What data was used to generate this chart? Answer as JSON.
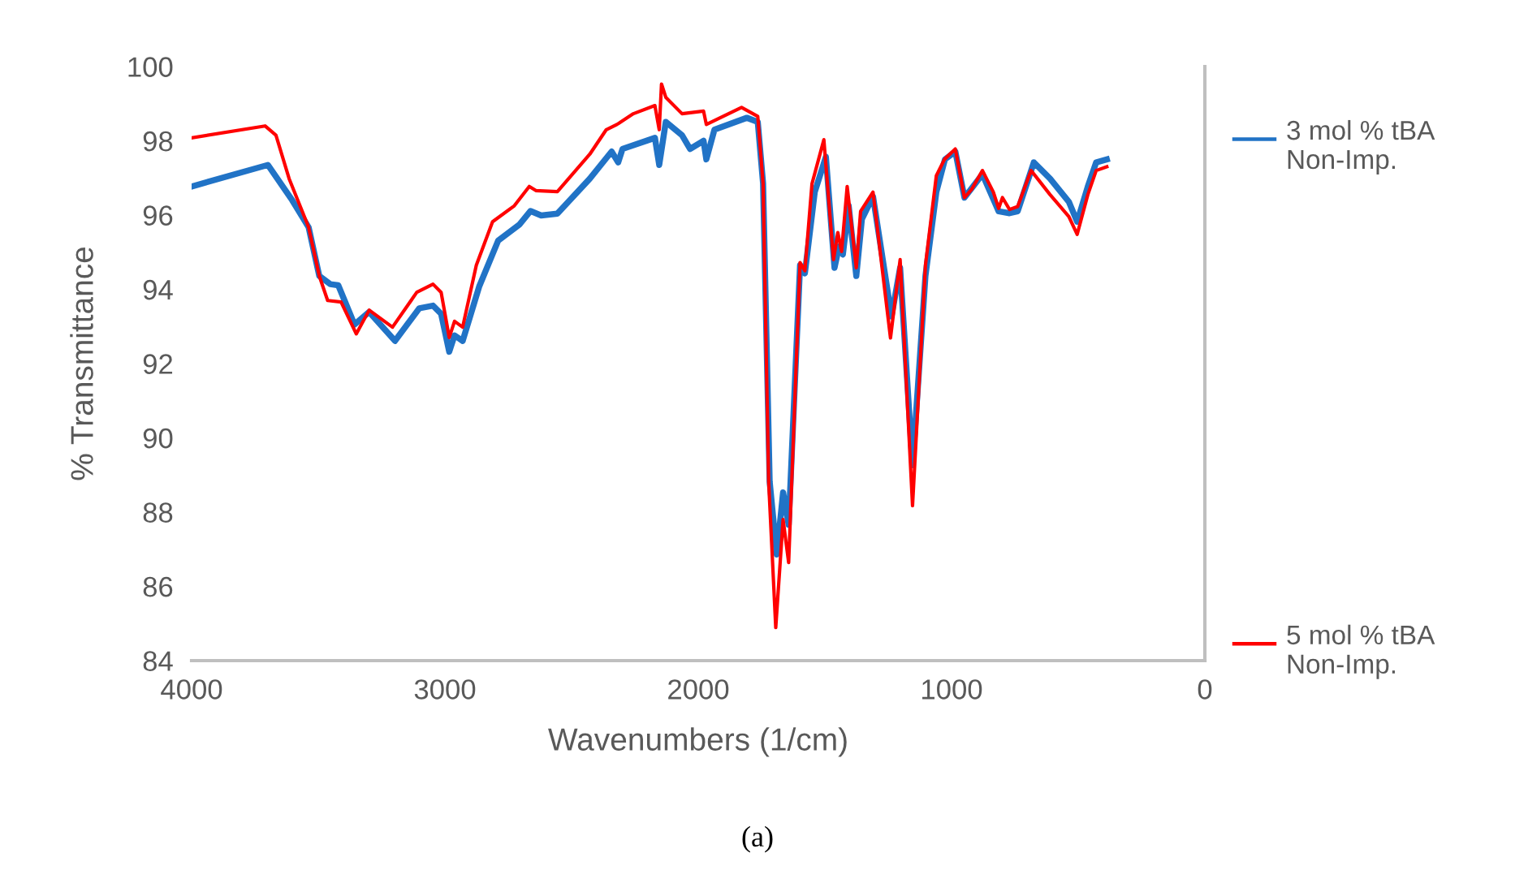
{
  "chart_data": {
    "type": "line",
    "xlabel": "Wavenumbers (1/cm)",
    "ylabel": "% Transmittance",
    "xlim": [
      4000,
      0
    ],
    "xticks": [
      4000,
      3000,
      2000,
      1000,
      0
    ],
    "ylim": [
      84,
      100
    ],
    "yticks": [
      84,
      86,
      88,
      90,
      92,
      94,
      96,
      98,
      100
    ],
    "grid": false,
    "legend": "right",
    "marker": "none",
    "line_style": "solid",
    "annotations": [
      "(a)"
    ],
    "series": [
      {
        "name": "3 mol % tBA Non-Imp.",
        "color": "#2173c6",
        "x": [
          4000,
          3699,
          3603,
          3538,
          3496,
          3453,
          3421,
          3357,
          3299,
          3197,
          3101,
          3047,
          3015,
          2983,
          2962,
          2930,
          2865,
          2790,
          2705,
          2662,
          2620,
          2556,
          2428,
          2342,
          2316,
          2299,
          2171,
          2154,
          2128,
          2064,
          2032,
          1979,
          1968,
          1936,
          1808,
          1765,
          1744,
          1718,
          1690,
          1665,
          1643,
          1598,
          1579,
          1540,
          1496,
          1462,
          1444,
          1429,
          1406,
          1376,
          1354,
          1310,
          1237,
          1203,
          1154,
          1103,
          1060,
          1026,
          985,
          949,
          878,
          814,
          771,
          739,
          675,
          611,
          537,
          504,
          462,
          429,
          387
        ],
        "values": [
          96.77,
          97.35,
          96.4,
          95.67,
          94.36,
          94.14,
          94.11,
          93.05,
          93.39,
          92.61,
          93.49,
          93.56,
          93.34,
          92.32,
          92.76,
          92.61,
          94.07,
          95.31,
          95.75,
          96.11,
          95.99,
          96.04,
          96.98,
          97.71,
          97.42,
          97.78,
          98.08,
          97.35,
          98.51,
          98.15,
          97.78,
          98.0,
          97.5,
          98.3,
          98.62,
          98.51,
          96.85,
          88.82,
          86.86,
          88.53,
          87.66,
          94.65,
          94.43,
          96.62,
          97.57,
          94.58,
          95.16,
          94.94,
          96.25,
          94.36,
          95.89,
          96.5,
          93.27,
          94.58,
          89.26,
          94.36,
          96.62,
          97.5,
          97.71,
          96.47,
          97.1,
          96.1,
          96.05,
          96.1,
          97.42,
          96.98,
          96.36,
          95.82,
          96.77,
          97.42,
          97.5
        ]
      },
      {
        "name": "5 mol % tBA Non-Imp.",
        "color": "#ff0000",
        "x": [
          4000,
          3710,
          3667,
          3615,
          3538,
          3496,
          3463,
          3410,
          3350,
          3299,
          3207,
          3111,
          3047,
          3015,
          2983,
          2962,
          2930,
          2876,
          2812,
          2726,
          2667,
          2641,
          2556,
          2428,
          2363,
          2321,
          2256,
          2171,
          2154,
          2145,
          2128,
          2064,
          1979,
          1968,
          1829,
          1765,
          1744,
          1722,
          1694,
          1665,
          1643,
          1598,
          1579,
          1551,
          1504,
          1466,
          1449,
          1434,
          1412,
          1376,
          1359,
          1310,
          1241,
          1203,
          1154,
          1103,
          1060,
          1028,
          985,
          949,
          921,
          878,
          835,
          814,
          799,
          771,
          739,
          686,
          611,
          537,
          504,
          462,
          429,
          387
        ],
        "values": [
          98.08,
          98.4,
          98.15,
          96.98,
          95.67,
          94.36,
          93.7,
          93.66,
          92.8,
          93.44,
          92.98,
          93.92,
          94.14,
          93.92,
          92.7,
          93.14,
          92.98,
          94.65,
          95.82,
          96.25,
          96.77,
          96.66,
          96.63,
          97.64,
          98.3,
          98.44,
          98.73,
          98.95,
          98.3,
          99.53,
          99.17,
          98.73,
          98.8,
          98.44,
          98.9,
          98.66,
          96.85,
          88.82,
          84.89,
          87.8,
          86.64,
          94.72,
          94.5,
          96.84,
          98.03,
          94.8,
          95.53,
          95.02,
          96.77,
          94.58,
          96.1,
          96.62,
          92.69,
          94.8,
          88.17,
          94.65,
          97.06,
          97.5,
          97.78,
          96.47,
          96.69,
          97.2,
          96.62,
          96.18,
          96.47,
          96.15,
          96.23,
          97.2,
          96.55,
          95.96,
          95.48,
          96.55,
          97.2,
          97.3
        ]
      }
    ]
  }
}
